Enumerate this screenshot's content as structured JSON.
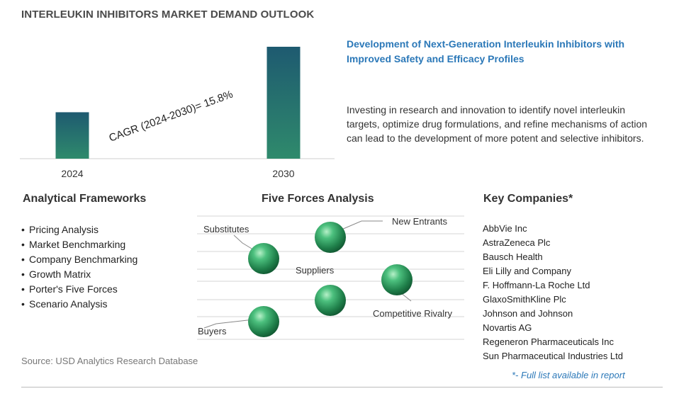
{
  "title": "INTERLEUKIN INHIBITORS MARKET DEMAND OUTLOOK",
  "chart_data": {
    "type": "bar",
    "categories": [
      "2024",
      "2030"
    ],
    "values": [
      1.0,
      2.41
    ],
    "annotation": "CAGR (2024-2030)=  15.8%",
    "colors": {
      "bar_top": "#1e5a70",
      "bar_bottom": "#2f8a6c"
    }
  },
  "highlight": "Development of Next-Generation Interleukin Inhibitors with Improved Safety and Efficacy Profiles",
  "description": "Investing in research and innovation to identify novel interleukin targets, optimize drug formulations, and refine mechanisms of action can lead to the development of more potent and selective inhibitors.",
  "frameworks": {
    "title": "Analytical Frameworks",
    "items": [
      "Pricing Analysis",
      "Market Benchmarking",
      "Company Benchmarking",
      "Growth Matrix",
      "Porter's Five Forces",
      "Scenario Analysis"
    ]
  },
  "five_forces": {
    "title": "Five Forces Analysis",
    "labels": {
      "substitutes": "Substitutes",
      "new_entrants": "New Entrants",
      "suppliers": "Suppliers",
      "competitive_rivalry": "Competitive Rivalry",
      "buyers": "Buyers"
    }
  },
  "companies": {
    "title": "Key Companies*",
    "items": [
      "AbbVie Inc",
      "AstraZeneca Plc",
      "Bausch Health",
      "Eli Lilly and Company",
      "F. Hoffmann-La Roche Ltd",
      "GlaxoSmithKline Plc",
      "Johnson and Johnson",
      "Novartis AG",
      "Regeneron Pharmaceuticals Inc",
      "Sun Pharmaceutical Industries Ltd"
    ],
    "footnote": "*- Full list available in report"
  },
  "source": "Source: USD Analytics Research Database",
  "colors": {
    "accent": "#2b78b8",
    "sphere": "#2e9a5e"
  }
}
